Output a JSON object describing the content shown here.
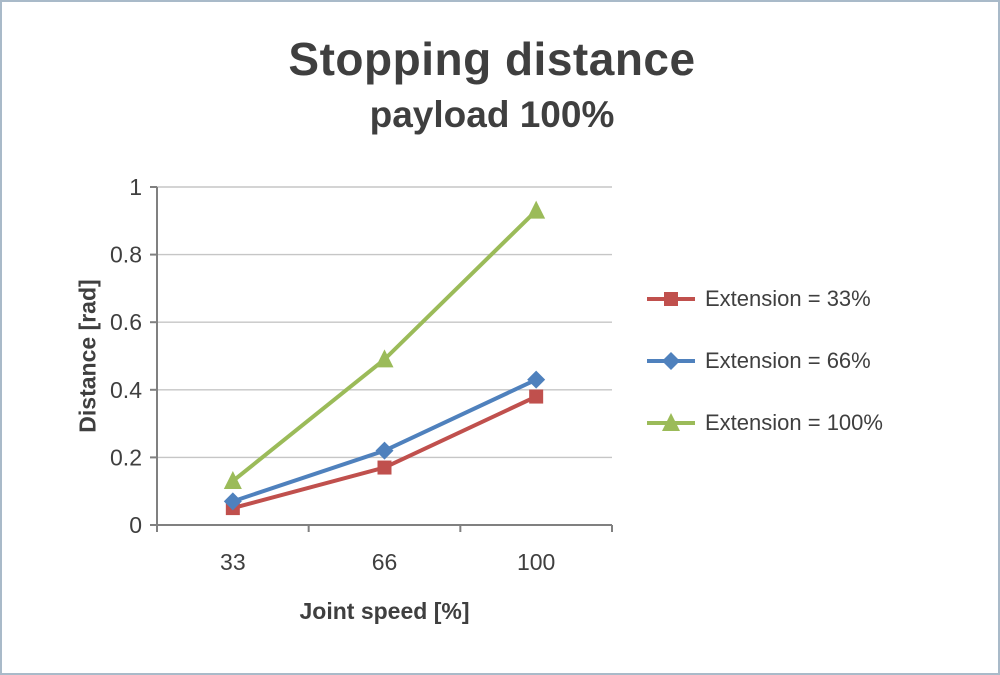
{
  "chart_data": {
    "type": "line",
    "title": "Stopping distance",
    "subtitle": "payload 100%",
    "xlabel": "Joint speed [%]",
    "ylabel": "Distance [rad]",
    "categories": [
      "33",
      "66",
      "100"
    ],
    "y_ticks": [
      0,
      0.2,
      0.4,
      0.6,
      0.8,
      1
    ],
    "y_tick_labels": [
      "0",
      "0.2",
      "0.4",
      "0.6",
      "0.8",
      "1"
    ],
    "ylim": [
      0,
      1
    ],
    "grid": true,
    "legend_position": "right",
    "series": [
      {
        "name": "Extension = 33%",
        "marker": "square",
        "color": "#c0504d",
        "values": [
          0.05,
          0.17,
          0.38
        ]
      },
      {
        "name": "Extension = 66%",
        "marker": "diamond",
        "color": "#4f81bd",
        "values": [
          0.07,
          0.22,
          0.43
        ]
      },
      {
        "name": "Extension = 100%",
        "marker": "triangle",
        "color": "#9bbb59",
        "values": [
          0.13,
          0.49,
          0.93
        ]
      }
    ],
    "axis_color": "#808080",
    "grid_color": "#c6c6c6",
    "tick_label_color": "#3f3f3f"
  }
}
